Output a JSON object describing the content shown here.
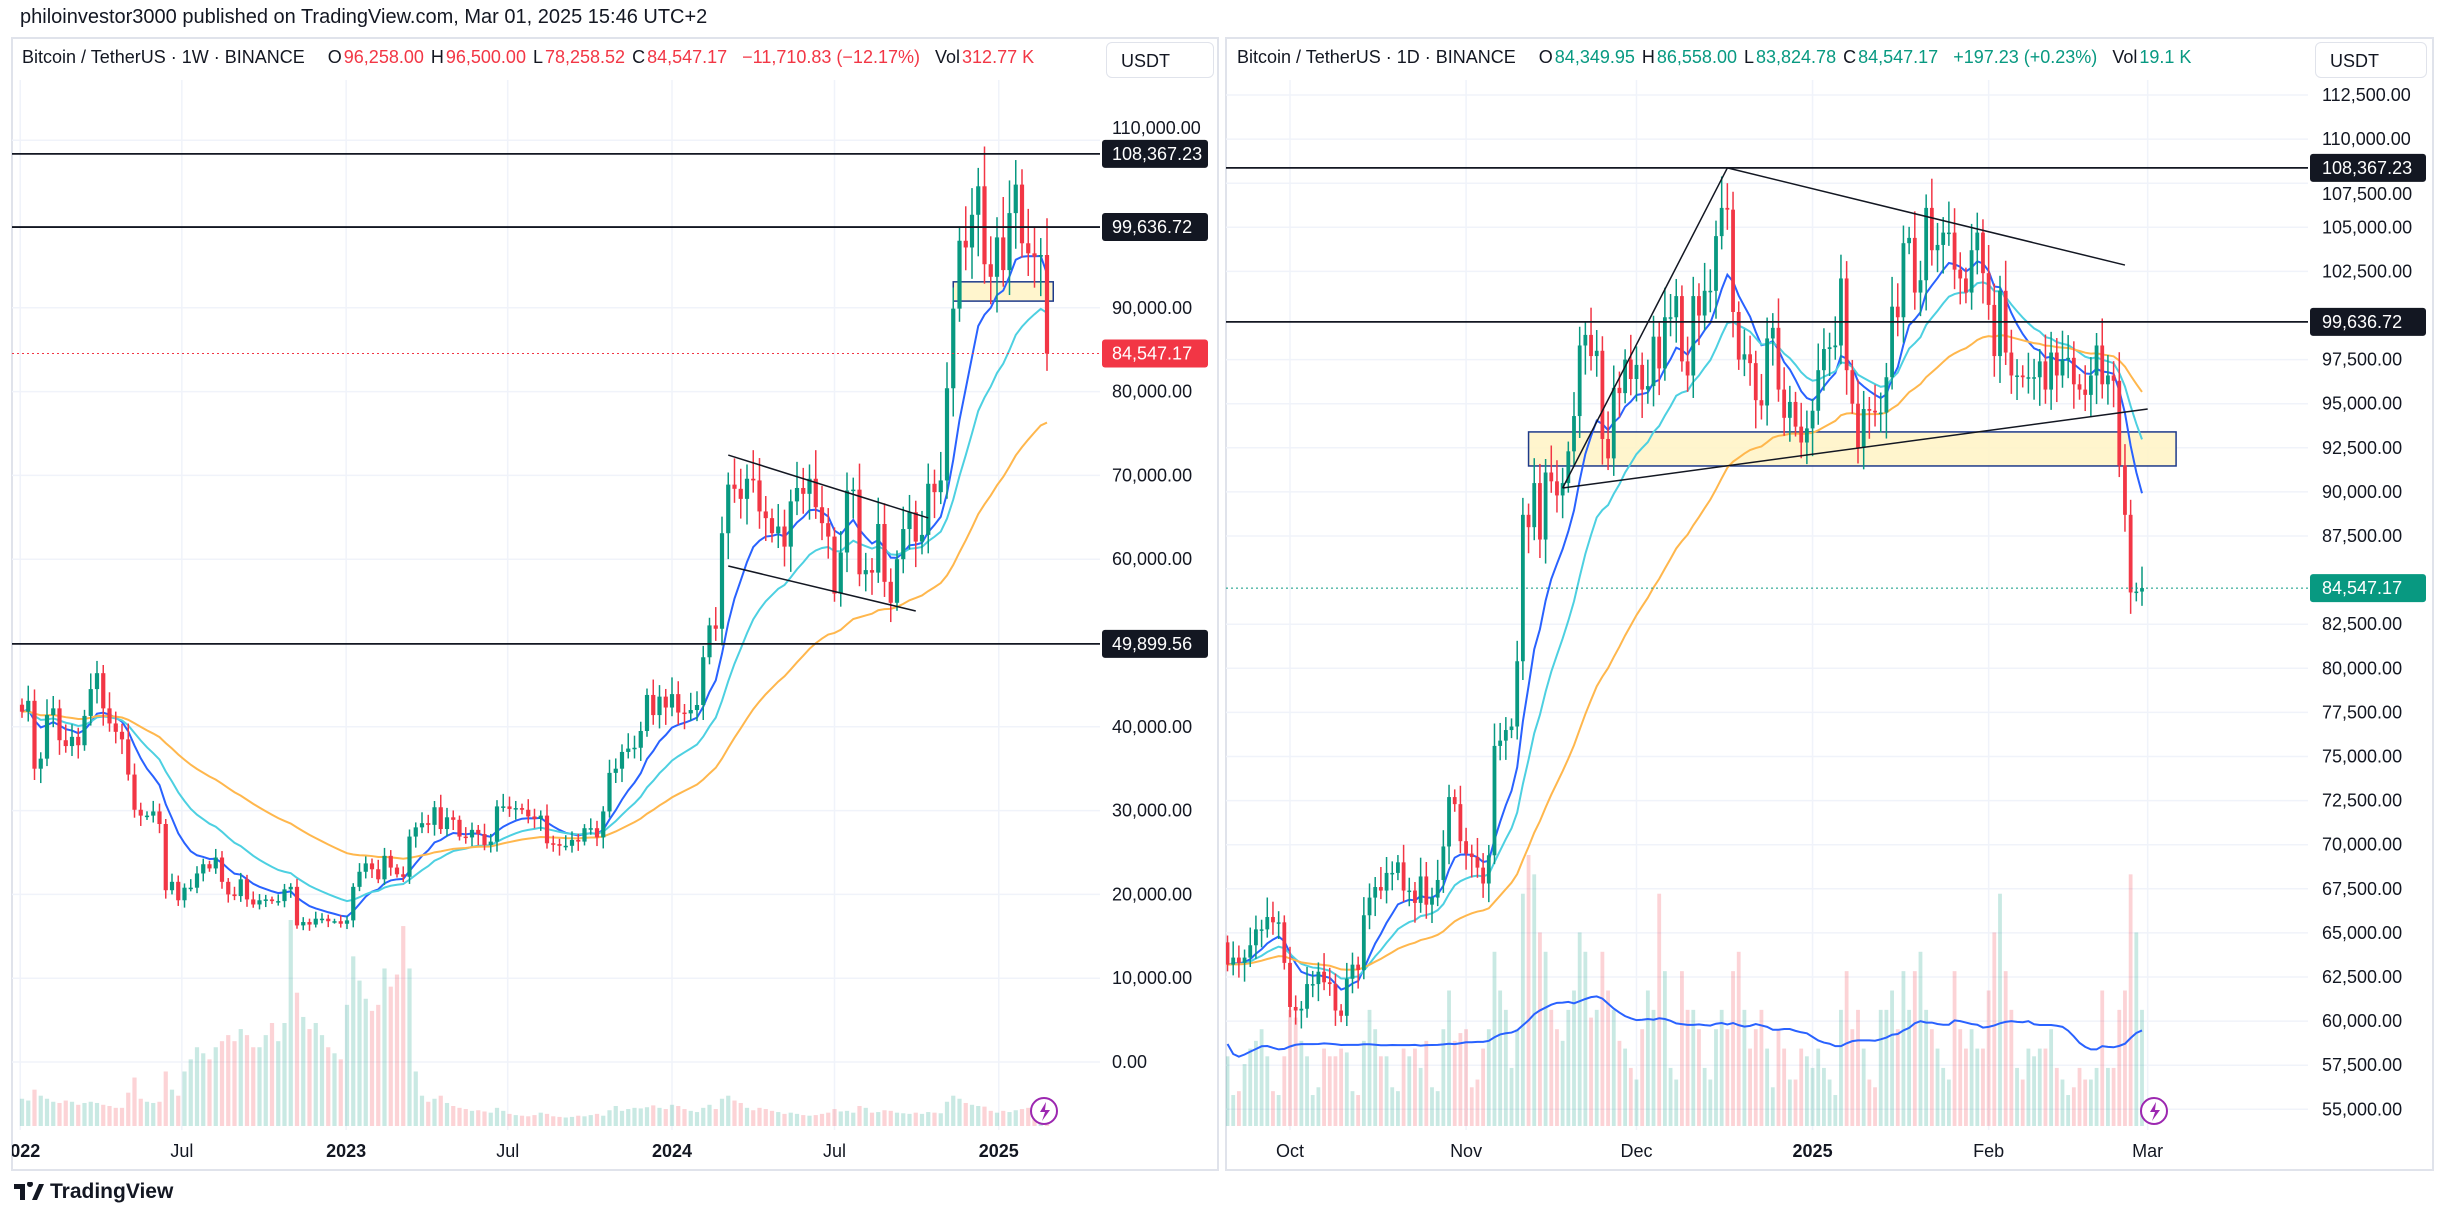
{
  "publish_line": "philoinvestor3000 published on TradingView.com, Mar 01, 2025 15:46 UTC+2",
  "footer": {
    "logo_text": "TradingView"
  },
  "colors": {
    "up": "#089981",
    "down": "#f23645",
    "ema_fast": "#2962ff",
    "ema_mid": "#4dd0e1",
    "ema_slow": "#ffb74d",
    "zone": "#fff3c4",
    "zone_border": "#1e3a8a",
    "line": "#131722",
    "lightning": "#9c27b0"
  },
  "chart_data": [
    {
      "type": "candlestick",
      "legend": {
        "symbol": "Bitcoin / TetherUS · 1W · BINANCE",
        "o_label": "O",
        "o": "96,258.00",
        "h_label": "H",
        "h": "96,500.00",
        "l_label": "L",
        "l": "78,258.52",
        "c_label": "C",
        "c": "84,547.17",
        "change": "−11,710.83 (−12.17%)",
        "vol_label": "Vol",
        "vol": "312.77 K"
      },
      "currency": "USDT",
      "interval": "1W",
      "start_week": "2022-01-03",
      "closes": [
        41.8,
        43.1,
        35.0,
        36.2,
        41.4,
        42.2,
        38.4,
        37.7,
        38.8,
        37.8,
        41.3,
        44.5,
        46.4,
        42.2,
        40.4,
        39.4,
        38.5,
        34.3,
        30.1,
        29.4,
        29.4,
        29.9,
        28.4,
        20.5,
        21.5,
        19.3,
        20.8,
        20.8,
        22.5,
        23.6,
        23.1,
        24.4,
        21.5,
        20.0,
        19.8,
        21.8,
        19.4,
        18.8,
        19.3,
        19.4,
        19.2,
        19.2,
        20.6,
        20.9,
        16.3,
        16.7,
        16.4,
        17.1,
        17.1,
        16.8,
        16.8,
        16.5,
        16.9,
        20.9,
        22.7,
        23.7,
        23.0,
        21.8,
        24.6,
        23.2,
        22.4,
        22.1,
        26.9,
        28.0,
        28.5,
        28.3,
        30.4,
        27.8,
        29.2,
        28.9,
        26.9,
        26.8,
        27.7,
        27.2,
        25.9,
        26.3,
        30.5,
        30.5,
        30.2,
        30.3,
        30.1,
        29.3,
        29.0,
        29.4,
        26.1,
        26.0,
        25.8,
        25.8,
        26.5,
        26.3,
        27.9,
        27.9,
        26.8,
        29.9,
        34.5,
        35.0,
        37.0,
        37.4,
        37.5,
        39.5,
        43.8,
        41.4,
        43.6,
        42.3,
        43.9,
        41.7,
        41.6,
        42.0,
        42.6,
        48.3,
        52.1,
        51.7,
        63.1,
        68.9,
        68.4,
        67.2,
        69.6,
        69.4,
        65.7,
        64.9,
        63.1,
        63.9,
        61.5,
        66.9,
        68.5,
        67.8,
        69.6,
        66.2,
        64.3,
        62.7,
        55.9,
        60.8,
        68.2,
        68.3,
        58.2,
        58.7,
        58.4,
        64.2,
        57.3,
        54.8,
        60.0,
        63.6,
        65.6,
        62.1,
        62.9,
        69.0,
        68.0,
        69.4,
        80.4,
        89.9,
        98.0,
        97.2,
        101.1,
        104.5,
        95.2,
        93.7,
        98.4,
        94.5,
        101.3,
        104.7,
        97.7,
        96.5,
        96.1,
        96.3,
        84.547
      ],
      "close_unit": "thousand USDT",
      "volumes_k": [
        450,
        420,
        600,
        500,
        450,
        400,
        380,
        420,
        400,
        350,
        380,
        400,
        380,
        350,
        330,
        300,
        300,
        550,
        800,
        450,
        400,
        380,
        400,
        900,
        600,
        500,
        900,
        1100,
        1300,
        1200,
        1100,
        1300,
        1400,
        1500,
        1400,
        1600,
        1500,
        1300,
        1300,
        1500,
        1700,
        1400,
        1700,
        3400,
        2200,
        1800,
        1600,
        1700,
        1500,
        1300,
        1200,
        1100,
        2000,
        2800,
        2400,
        2100,
        1900,
        2000,
        2600,
        2300,
        2500,
        3300,
        2600,
        900,
        500,
        400,
        450,
        500,
        380,
        330,
        300,
        280,
        250,
        260,
        240,
        220,
        300,
        250,
        200,
        180,
        170,
        160,
        180,
        220,
        200,
        160,
        150,
        140,
        150,
        170,
        160,
        180,
        200,
        170,
        260,
        330,
        250,
        280,
        300,
        290,
        310,
        340,
        300,
        280,
        350,
        330,
        280,
        250,
        230,
        300,
        350,
        280,
        450,
        500,
        420,
        380,
        300,
        260,
        300,
        280,
        250,
        230,
        200,
        220,
        200,
        180,
        170,
        180,
        200,
        220,
        280,
        240,
        250,
        220,
        330,
        300,
        220,
        230,
        260,
        250,
        220,
        210,
        200,
        220,
        200,
        230,
        220,
        210,
        400,
        500,
        450,
        380,
        350,
        330,
        320,
        250,
        220,
        250,
        230,
        260,
        280,
        300,
        200,
        170,
        313
      ],
      "moving_averages": [
        {
          "type": "EMA",
          "period": 10,
          "color": "#2962ff"
        },
        {
          "type": "EMA",
          "period": 21,
          "color": "#4dd0e1"
        },
        {
          "type": "EMA",
          "period": 50,
          "color": "#ffb74d"
        }
      ],
      "y_ticks": [
        "110,000.00",
        "90,000.00",
        "80,000.00",
        "70,000.00",
        "60,000.00",
        "40,000.00",
        "30,000.00",
        "20,000.00",
        "10,000.00",
        "0.00"
      ],
      "y_tick_values": [
        110000,
        90000,
        80000,
        70000,
        60000,
        40000,
        30000,
        20000,
        10000,
        0
      ],
      "ylim": [
        -8000,
        115000
      ],
      "x_ticks": [
        {
          "label": "2022",
          "date": "2022-01-01",
          "bold": true
        },
        {
          "label": "Jul",
          "date": "2022-07-01",
          "bold": false
        },
        {
          "label": "2023",
          "date": "2023-01-01",
          "bold": true
        },
        {
          "label": "Jul",
          "date": "2023-07-01",
          "bold": false
        },
        {
          "label": "2024",
          "date": "2024-01-01",
          "bold": true
        },
        {
          "label": "Jul",
          "date": "2024-07-01",
          "bold": false
        },
        {
          "label": "2025",
          "date": "2025-01-01",
          "bold": true
        }
      ],
      "horizontal_levels": [
        {
          "price": 108367.23,
          "label": "108,367.23"
        },
        {
          "price": 99636.72,
          "label": "99,636.72"
        },
        {
          "price": 49899.56,
          "label": "49,899.56"
        }
      ],
      "last_price": {
        "price": 84547.17,
        "label": "84,547.17",
        "color": "#f23645"
      },
      "zones": [
        {
          "from": "2024-11-11",
          "to": "2025-03-03",
          "low": 90800,
          "high": 93100
        }
      ],
      "trendlines": [
        {
          "from": [
            "2024-03-04",
            72430
          ],
          "to": [
            "2024-10-14",
            64920
          ]
        },
        {
          "from": [
            "2024-03-04",
            59190
          ],
          "to": [
            "2024-09-30",
            53820
          ]
        }
      ]
    },
    {
      "type": "candlestick",
      "legend": {
        "symbol": "Bitcoin / TetherUS · 1D · BINANCE",
        "o_label": "O",
        "o": "84,349.95",
        "h_label": "H",
        "h": "86,558.00",
        "l_label": "L",
        "l": "83,824.78",
        "c_label": "C",
        "c": "84,547.17",
        "change": "+197.23 (+0.23%)",
        "vol_label": "Vol",
        "vol": "19.1 K"
      },
      "currency": "USDT",
      "interval": "1D",
      "start_day": "2024-09-20",
      "closes": [
        63.2,
        63.6,
        63.3,
        63.6,
        64.3,
        65.2,
        65.2,
        65.9,
        65.6,
        65.6,
        63.3,
        60.8,
        60.6,
        60.7,
        62.1,
        62.1,
        62.8,
        62.2,
        62.1,
        60.6,
        60.3,
        62.4,
        63.2,
        62.9,
        66.0,
        67.0,
        67.6,
        67.4,
        68.4,
        68.4,
        69.0,
        67.4,
        67.4,
        66.7,
        68.2,
        66.6,
        67.0,
        68.0,
        69.9,
        72.7,
        72.3,
        70.2,
        69.5,
        69.3,
        68.7,
        67.8,
        69.4,
        75.6,
        75.9,
        76.5,
        76.7,
        80.4,
        88.7,
        88.0,
        90.5,
        87.3,
        91.1,
        90.6,
        89.8,
        90.5,
        92.3,
        94.3,
        98.3,
        98.9,
        97.7,
        98.0,
        93.0,
        91.9,
        95.9,
        95.6,
        97.5,
        96.4,
        97.2,
        95.8,
        96.0,
        98.8,
        97.0,
        99.9,
        99.9,
        101.1,
        97.4,
        96.6,
        101.1,
        100.0,
        101.4,
        101.4,
        104.5,
        106.1,
        106.0,
        100.2,
        97.5,
        97.8,
        97.3,
        95.2,
        94.9,
        98.7,
        99.3,
        95.8,
        94.2,
        95.1,
        93.7,
        92.8,
        93.6,
        94.6,
        96.9,
        98.1,
        98.2,
        98.3,
        102.1,
        96.9,
        95.0,
        92.5,
        94.7,
        94.6,
        94.5,
        94.5,
        96.5,
        100.5,
        99.9,
        104.1,
        104.4,
        101.3,
        102.0,
        106.1,
        103.7,
        104.0,
        104.7,
        104.7,
        102.6,
        102.1,
        101.3,
        103.7,
        104.7,
        102.4,
        100.6,
        97.7,
        101.4,
        97.9,
        96.6,
        96.6,
        96.5,
        96.5,
        96.5,
        97.4,
        95.8,
        97.9,
        96.6,
        97.5,
        97.6,
        96.1,
        95.8,
        95.5,
        96.6,
        98.3,
        96.1,
        96.6,
        96.3,
        91.5,
        88.7,
        84.3,
        84.35,
        84.547
      ],
      "close_unit": "thousand USDT",
      "volumes_k": [
        18,
        8,
        9,
        16,
        20,
        22,
        25,
        18,
        9,
        8,
        18,
        30,
        28,
        22,
        18,
        8,
        10,
        20,
        18,
        18,
        20,
        19,
        9,
        8,
        22,
        30,
        25,
        18,
        18,
        10,
        9,
        20,
        18,
        20,
        15,
        22,
        10,
        9,
        25,
        35,
        22,
        24,
        25,
        10,
        12,
        20,
        25,
        45,
        35,
        30,
        15,
        25,
        60,
        70,
        65,
        50,
        45,
        30,
        25,
        22,
        30,
        35,
        50,
        45,
        28,
        30,
        45,
        35,
        30,
        22,
        20,
        15,
        12,
        25,
        35,
        30,
        60,
        40,
        15,
        12,
        40,
        30,
        30,
        25,
        15,
        12,
        25,
        30,
        25,
        40,
        45,
        30,
        20,
        25,
        30,
        20,
        10,
        25,
        20,
        12,
        12,
        20,
        18,
        15,
        20,
        15,
        12,
        8,
        30,
        40,
        25,
        30,
        20,
        12,
        10,
        30,
        30,
        35,
        25,
        40,
        30,
        40,
        45,
        30,
        25,
        20,
        15,
        12,
        40,
        25,
        20,
        25,
        20,
        20,
        35,
        50,
        60,
        40,
        30,
        15,
        12,
        20,
        18,
        20,
        20,
        25,
        15,
        12,
        8,
        10,
        15,
        12,
        12,
        15,
        35,
        15,
        15,
        30,
        35,
        65,
        50,
        30,
        19
      ],
      "moving_averages": [
        {
          "type": "EMA",
          "period": 10,
          "color": "#2962ff"
        },
        {
          "type": "EMA",
          "period": 20,
          "color": "#4dd0e1"
        },
        {
          "type": "EMA",
          "period": 50,
          "color": "#ffb74d"
        }
      ],
      "y_ticks": [
        "112,500.00",
        "110,000.00",
        "107,500.00",
        "105,000.00",
        "102,500.00",
        "97,500.00",
        "95,000.00",
        "92,500.00",
        "90,000.00",
        "87,500.00",
        "82,500.00",
        "80,000.00",
        "77,500.00",
        "75,000.00",
        "72,500.00",
        "70,000.00",
        "67,500.00",
        "65,000.00",
        "62,500.00",
        "60,000.00",
        "57,500.00",
        "55,000.00"
      ],
      "y_tick_values": [
        112500,
        110000,
        107500,
        105000,
        102500,
        97500,
        95000,
        92500,
        90000,
        87500,
        82500,
        80000,
        77500,
        75000,
        72500,
        70000,
        67500,
        65000,
        62500,
        60000,
        57500,
        55000
      ],
      "ylim": [
        54000,
        113500
      ],
      "x_ticks": [
        {
          "label": "Oct",
          "date": "2024-10-01",
          "bold": false
        },
        {
          "label": "Nov",
          "date": "2024-11-01",
          "bold": false
        },
        {
          "label": "Dec",
          "date": "2024-12-01",
          "bold": false
        },
        {
          "label": "2025",
          "date": "2025-01-01",
          "bold": true
        },
        {
          "label": "Feb",
          "date": "2025-02-01",
          "bold": false
        },
        {
          "label": "Mar",
          "date": "2025-03-01",
          "bold": false
        }
      ],
      "horizontal_levels": [
        {
          "price": 108367.23,
          "label": "108,367.23"
        },
        {
          "price": 99636.72,
          "label": "99,636.72"
        }
      ],
      "last_price": {
        "price": 84547.17,
        "label": "84,547.17",
        "color": "#089981"
      },
      "zones": [
        {
          "from": "2024-11-12",
          "to": "2025-03-06",
          "low": 91470,
          "high": 93400
        }
      ],
      "trendlines": [
        {
          "from": [
            "2024-11-18",
            90220
          ],
          "to": [
            "2024-12-17",
            108367
          ]
        },
        {
          "from": [
            "2024-12-17",
            108367
          ],
          "to": [
            "2025-02-25",
            102860
          ]
        },
        {
          "from": [
            "2024-11-18",
            90220
          ],
          "to": [
            "2025-03-01",
            94700
          ]
        }
      ]
    }
  ]
}
